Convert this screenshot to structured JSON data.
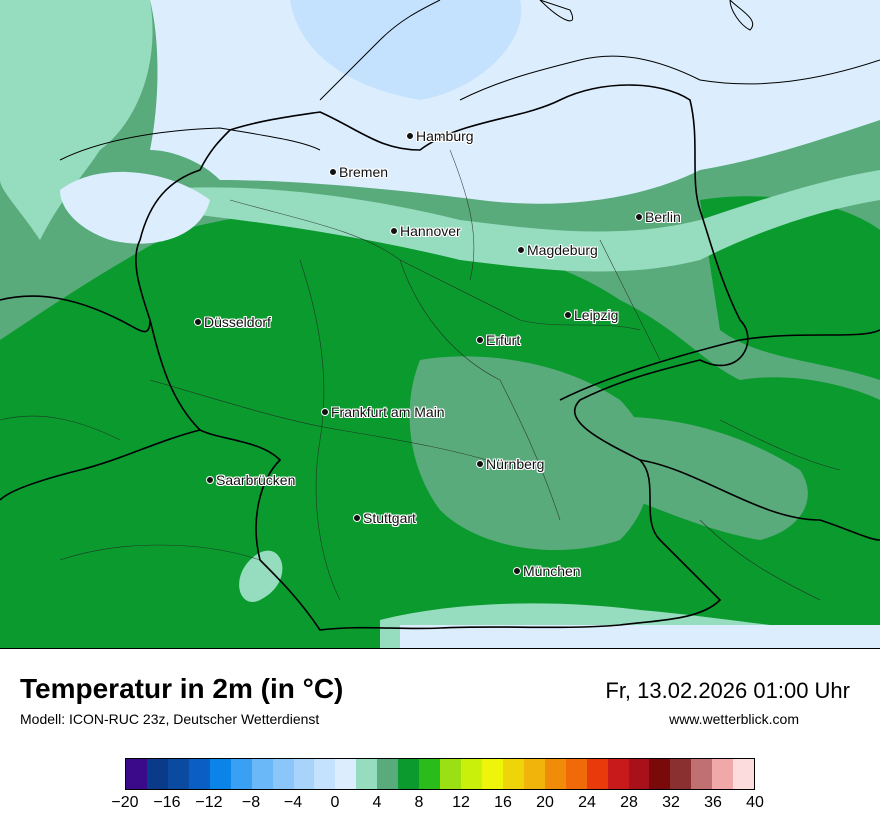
{
  "map": {
    "cities": [
      {
        "id": "hamburg",
        "name": "Hamburg"
      },
      {
        "id": "bremen",
        "name": "Bremen"
      },
      {
        "id": "hannover",
        "name": "Hannover"
      },
      {
        "id": "berlin",
        "name": "Berlin"
      },
      {
        "id": "magdeburg",
        "name": "Magdeburg"
      },
      {
        "id": "duesseldorf",
        "name": "Düsseldorf"
      },
      {
        "id": "leipzig",
        "name": "Leipzig"
      },
      {
        "id": "erfurt",
        "name": "Erfurt"
      },
      {
        "id": "frankfurt",
        "name": "Frankfurt am Main"
      },
      {
        "id": "nuernberg",
        "name": "Nürnberg"
      },
      {
        "id": "saarbruecken",
        "name": "Saarbrücken"
      },
      {
        "id": "stuttgart",
        "name": "Stuttgart"
      },
      {
        "id": "muenchen",
        "name": "München"
      }
    ]
  },
  "footer": {
    "title": "Temperatur in 2m (in °C)",
    "subtitle": "Modell: ICON-RUC 23z, Deutscher Wetterdienst",
    "datetime": "Fr, 13.02.2026 01:00 Uhr",
    "website": "www.wetterblick.com"
  },
  "legend": {
    "colors": [
      "#3a0a8a",
      "#0a3a8a",
      "#0a4aa0",
      "#0a5ec4",
      "#0a84e8",
      "#3aa0f4",
      "#6ab8f8",
      "#8ac6fa",
      "#a8d4fc",
      "#c4e2fd",
      "#dceefe",
      "#96dcbe",
      "#5aab7c",
      "#0a9a2e",
      "#2abc1a",
      "#9ae012",
      "#c8f00a",
      "#eef40a",
      "#f0d40a",
      "#f0b40a",
      "#f08c0a",
      "#f06a0a",
      "#e83a0a",
      "#c81a1a",
      "#a8101a",
      "#7a0a0a",
      "#8a3030",
      "#c07070",
      "#f0a8a8",
      "#fcdcdc"
    ],
    "ticks": [
      "−20",
      "−16",
      "−12",
      "−8",
      "−4",
      "0",
      "4",
      "8",
      "12",
      "16",
      "20",
      "24",
      "28",
      "32",
      "36",
      "40"
    ]
  }
}
